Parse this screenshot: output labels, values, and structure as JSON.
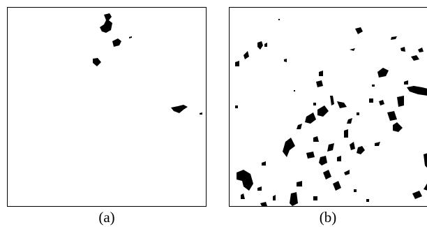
{
  "figure": {
    "panels": [
      {
        "caption": "(a)"
      },
      {
        "caption": "(b)"
      }
    ],
    "colors": {
      "blob": "#000000",
      "background": "#ffffff",
      "frame": "#000000"
    }
  }
}
